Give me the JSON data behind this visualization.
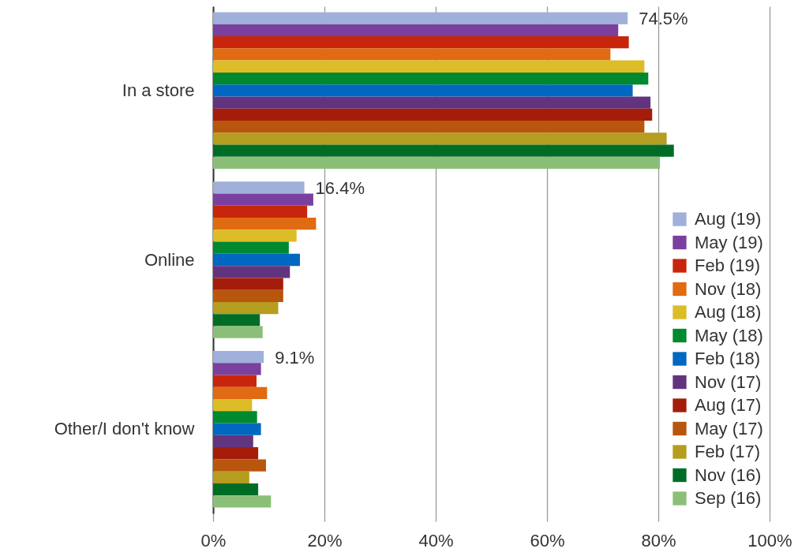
{
  "chart_data": {
    "type": "bar",
    "orientation": "horizontal",
    "categories": [
      "In a store",
      "Online",
      "Other/I don't know"
    ],
    "series": [
      {
        "name": "Aug (19)",
        "color": "#a0b0da",
        "values": [
          74.5,
          16.4,
          9.1
        ],
        "value_labels": [
          "74.5%",
          "16.4%",
          "9.1%"
        ]
      },
      {
        "name": "May (19)",
        "color": "#7b3f9e",
        "values": [
          72.8,
          18.0,
          8.6
        ]
      },
      {
        "name": "Feb (19)",
        "color": "#c8260c",
        "values": [
          74.7,
          16.9,
          7.8
        ]
      },
      {
        "name": "Nov (18)",
        "color": "#e06b12",
        "values": [
          71.4,
          18.5,
          9.7
        ]
      },
      {
        "name": "Aug (18)",
        "color": "#dcbd27",
        "values": [
          77.5,
          15.0,
          7.0
        ]
      },
      {
        "name": "May (18)",
        "color": "#00892f",
        "values": [
          78.2,
          13.6,
          7.9
        ]
      },
      {
        "name": "Feb (18)",
        "color": "#0068c0",
        "values": [
          75.4,
          15.6,
          8.6
        ]
      },
      {
        "name": "Nov (17)",
        "color": "#62347f",
        "values": [
          78.6,
          13.8,
          7.2
        ]
      },
      {
        "name": "Aug (17)",
        "color": "#a51d0a",
        "values": [
          78.9,
          12.6,
          8.1
        ]
      },
      {
        "name": "May (17)",
        "color": "#b8560e",
        "values": [
          77.5,
          12.6,
          9.5
        ]
      },
      {
        "name": "Feb (17)",
        "color": "#b59d20",
        "values": [
          81.5,
          11.7,
          6.5
        ]
      },
      {
        "name": "Nov (16)",
        "color": "#006d26",
        "values": [
          82.8,
          8.4,
          8.1
        ]
      },
      {
        "name": "Sep (16)",
        "color": "#8bbf78",
        "values": [
          80.3,
          8.9,
          10.4
        ]
      }
    ],
    "xlim": [
      0,
      100
    ],
    "xticks": [
      {
        "value": 0,
        "label": "0%"
      },
      {
        "value": 20,
        "label": "20%"
      },
      {
        "value": 40,
        "label": "40%"
      },
      {
        "value": 60,
        "label": "60%"
      },
      {
        "value": 80,
        "label": "80%"
      },
      {
        "value": 100,
        "label": "100%"
      }
    ],
    "grid": "x",
    "legend": "bottom right"
  }
}
